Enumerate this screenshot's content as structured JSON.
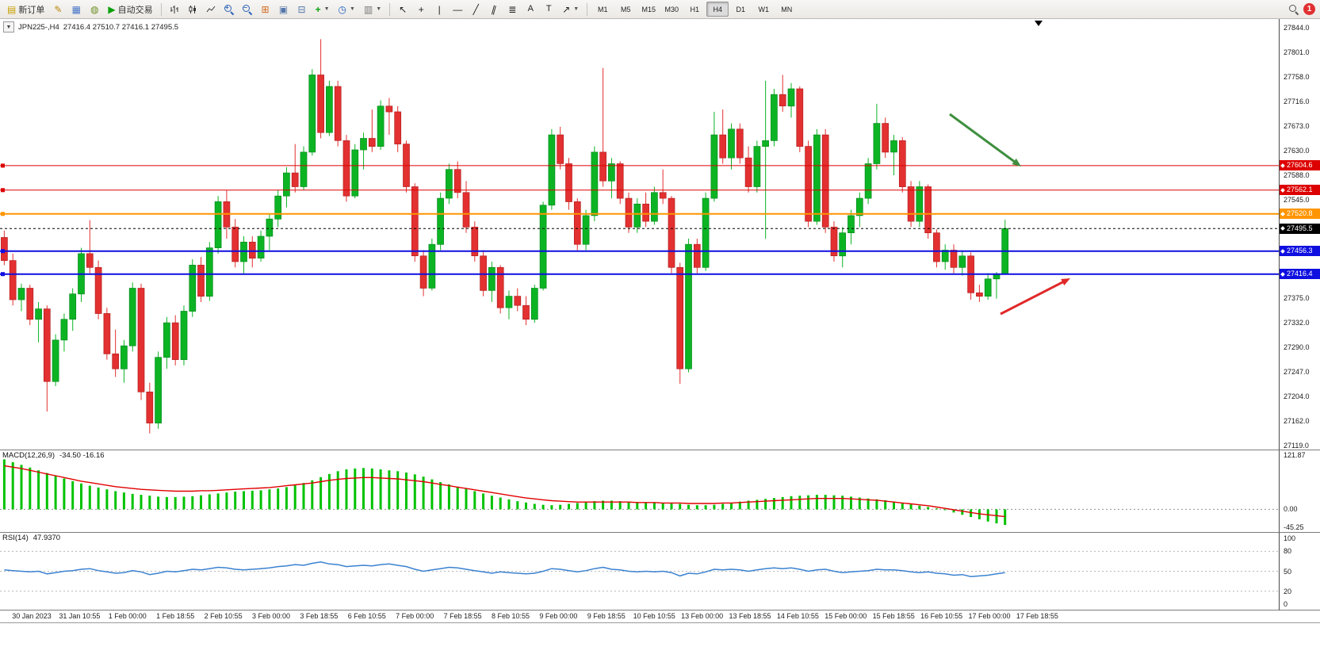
{
  "toolbar": {
    "new_order": "新订单",
    "autotrade": "自动交易",
    "timeframes": [
      "M1",
      "M5",
      "M15",
      "M30",
      "H1",
      "H4",
      "D1",
      "W1",
      "MN"
    ],
    "active_timeframe": "H4",
    "notification_count": "1",
    "text_tool": "A",
    "label_tool": "T"
  },
  "chart": {
    "title": "JPN225-,H4",
    "ohlc_text": "27416.4 27510.7 27416.1 27495.5"
  },
  "macd": {
    "name": "MACD(12,26,9)",
    "values": "-34.50 -16.16",
    "scale": [
      "121.87",
      "0.00",
      "-45.25"
    ]
  },
  "rsi": {
    "name": "RSI(14)",
    "value": "47.9370",
    "scale": [
      "100",
      "80",
      "50",
      "20",
      "0"
    ]
  },
  "price_scale": {
    "labels": [
      "27844.0",
      "27801.0",
      "27758.0",
      "27716.0",
      "27673.0",
      "27630.0",
      "27588.0",
      "27545.0",
      "27375.0",
      "27332.0",
      "27290.0",
      "27247.0",
      "27204.0",
      "27162.0",
      "27119.0"
    ]
  },
  "price_boxes": [
    {
      "label": "27604.6",
      "color": "#dd0000"
    },
    {
      "label": "27562.1",
      "color": "#dd0000"
    },
    {
      "label": "27520.8",
      "color": "#ff9500"
    },
    {
      "label": "27495.5",
      "color": "#000000"
    },
    {
      "label": "27456.3",
      "color": "#0f0fe0"
    },
    {
      "label": "27416.4",
      "color": "#0f0fe0"
    }
  ],
  "time_axis": [
    "30 Jan 2023",
    "31 Jan 10:55",
    "1 Feb 00:00",
    "1 Feb 18:55",
    "2 Feb 10:55",
    "3 Feb 00:00",
    "3 Feb 18:55",
    "6 Feb 10:55",
    "7 Feb 00:00",
    "7 Feb 18:55",
    "8 Feb 10:55",
    "9 Feb 00:00",
    "9 Feb 18:55",
    "10 Feb 10:55",
    "13 Feb 00:00",
    "13 Feb 18:55",
    "14 Feb 10:55",
    "15 Feb 00:00",
    "15 Feb 18:55",
    "16 Feb 10:55",
    "17 Feb 00:00",
    "17 Feb 18:55"
  ],
  "chart_data": {
    "type": "candlestick",
    "symbol": "JPN225-",
    "timeframe": "H4",
    "current_bar": {
      "open": 27416.4,
      "high": 27510.7,
      "low": 27416.1,
      "close": 27495.5
    },
    "y_range": [
      27112,
      27859
    ],
    "right_gap_slots": 31.5,
    "shift_marker_x": 1310,
    "colors": {
      "bull": "#0cb424",
      "bull_border": "#068a1c",
      "bear": "#e33030",
      "bear_border": "#b51f1f"
    },
    "candles": [
      [
        27480,
        27492,
        27432,
        27440
      ],
      [
        27440,
        27452,
        27362,
        27372
      ],
      [
        27372,
        27400,
        27352,
        27392
      ],
      [
        27392,
        27398,
        27328,
        27338
      ],
      [
        27338,
        27368,
        27298,
        27356
      ],
      [
        27356,
        27362,
        27178,
        27230
      ],
      [
        27230,
        27312,
        27222,
        27302
      ],
      [
        27302,
        27348,
        27282,
        27338
      ],
      [
        27338,
        27392,
        27318,
        27382
      ],
      [
        27382,
        27462,
        27368,
        27452
      ],
      [
        27452,
        27510,
        27418,
        27428
      ],
      [
        27428,
        27440,
        27338,
        27348
      ],
      [
        27348,
        27358,
        27268,
        27278
      ],
      [
        27278,
        27320,
        27238,
        27252
      ],
      [
        27252,
        27302,
        27228,
        27292
      ],
      [
        27292,
        27402,
        27282,
        27392
      ],
      [
        27392,
        27400,
        27198,
        27212
      ],
      [
        27212,
        27228,
        27140,
        27158
      ],
      [
        27158,
        27282,
        27148,
        27272
      ],
      [
        27272,
        27342,
        27252,
        27332
      ],
      [
        27332,
        27345,
        27258,
        27268
      ],
      [
        27268,
        27362,
        27258,
        27352
      ],
      [
        27352,
        27442,
        27342,
        27432
      ],
      [
        27432,
        27446,
        27368,
        27378
      ],
      [
        27378,
        27472,
        27370,
        27462
      ],
      [
        27462,
        27552,
        27452,
        27542
      ],
      [
        27542,
        27562,
        27478,
        27498
      ],
      [
        27498,
        27512,
        27428,
        27438
      ],
      [
        27438,
        27482,
        27418,
        27472
      ],
      [
        27472,
        27482,
        27428,
        27444
      ],
      [
        27444,
        27492,
        27438,
        27482
      ],
      [
        27482,
        27522,
        27458,
        27512
      ],
      [
        27512,
        27562,
        27498,
        27552
      ],
      [
        27552,
        27602,
        27532,
        27592
      ],
      [
        27592,
        27642,
        27558,
        27568
      ],
      [
        27568,
        27638,
        27562,
        27628
      ],
      [
        27628,
        27772,
        27622,
        27762
      ],
      [
        27762,
        27824,
        27652,
        27662
      ],
      [
        27662,
        27752,
        27656,
        27742
      ],
      [
        27742,
        27752,
        27638,
        27648
      ],
      [
        27648,
        27658,
        27542,
        27552
      ],
      [
        27552,
        27642,
        27548,
        27632
      ],
      [
        27632,
        27662,
        27598,
        27652
      ],
      [
        27652,
        27702,
        27628,
        27638
      ],
      [
        27638,
        27718,
        27632,
        27708
      ],
      [
        27708,
        27722,
        27658,
        27698
      ],
      [
        27698,
        27708,
        27628,
        27642
      ],
      [
        27642,
        27648,
        27558,
        27568
      ],
      [
        27568,
        27574,
        27438,
        27448
      ],
      [
        27448,
        27458,
        27378,
        27392
      ],
      [
        27392,
        27478,
        27388,
        27468
      ],
      [
        27468,
        27558,
        27458,
        27548
      ],
      [
        27548,
        27608,
        27538,
        27598
      ],
      [
        27598,
        27612,
        27548,
        27558
      ],
      [
        27558,
        27578,
        27488,
        27498
      ],
      [
        27498,
        27508,
        27438,
        27448
      ],
      [
        27448,
        27458,
        27378,
        27388
      ],
      [
        27388,
        27438,
        27368,
        27428
      ],
      [
        27428,
        27432,
        27348,
        27358
      ],
      [
        27358,
        27388,
        27338,
        27378
      ],
      [
        27378,
        27392,
        27352,
        27362
      ],
      [
        27362,
        27378,
        27328,
        27338
      ],
      [
        27338,
        27398,
        27332,
        27392
      ],
      [
        27392,
        27542,
        27388,
        27536
      ],
      [
        27536,
        27668,
        27528,
        27658
      ],
      [
        27658,
        27672,
        27598,
        27608
      ],
      [
        27608,
        27618,
        27528,
        27542
      ],
      [
        27542,
        27548,
        27458,
        27468
      ],
      [
        27468,
        27528,
        27458,
        27518
      ],
      [
        27518,
        27638,
        27508,
        27628
      ],
      [
        27628,
        27774,
        27568,
        27578
      ],
      [
        27578,
        27618,
        27548,
        27608
      ],
      [
        27608,
        27612,
        27538,
        27548
      ],
      [
        27548,
        27558,
        27488,
        27498
      ],
      [
        27498,
        27548,
        27488,
        27538
      ],
      [
        27538,
        27558,
        27498,
        27508
      ],
      [
        27508,
        27568,
        27502,
        27558
      ],
      [
        27558,
        27598,
        27538,
        27548
      ],
      [
        27548,
        27552,
        27418,
        27428
      ],
      [
        27428,
        27436,
        27226,
        27252
      ],
      [
        27252,
        27478,
        27246,
        27468
      ],
      [
        27468,
        27478,
        27418,
        27428
      ],
      [
        27428,
        27558,
        27422,
        27548
      ],
      [
        27548,
        27698,
        27542,
        27658
      ],
      [
        27658,
        27702,
        27608,
        27618
      ],
      [
        27618,
        27678,
        27598,
        27668
      ],
      [
        27668,
        27678,
        27608,
        27618
      ],
      [
        27618,
        27638,
        27558,
        27568
      ],
      [
        27568,
        27648,
        27558,
        27638
      ],
      [
        27638,
        27752,
        27478,
        27648
      ],
      [
        27648,
        27738,
        27638,
        27728
      ],
      [
        27728,
        27762,
        27698,
        27708
      ],
      [
        27708,
        27748,
        27688,
        27738
      ],
      [
        27738,
        27742,
        27628,
        27638
      ],
      [
        27638,
        27648,
        27498,
        27508
      ],
      [
        27508,
        27668,
        27502,
        27658
      ],
      [
        27658,
        27668,
        27488,
        27498
      ],
      [
        27498,
        27508,
        27438,
        27448
      ],
      [
        27448,
        27498,
        27428,
        27488
      ],
      [
        27488,
        27528,
        27468,
        27518
      ],
      [
        27518,
        27558,
        27498,
        27548
      ],
      [
        27548,
        27618,
        27538,
        27608
      ],
      [
        27608,
        27712,
        27598,
        27678
      ],
      [
        27678,
        27688,
        27618,
        27628
      ],
      [
        27628,
        27658,
        27588,
        27648
      ],
      [
        27648,
        27654,
        27558,
        27568
      ],
      [
        27568,
        27578,
        27498,
        27508
      ],
      [
        27508,
        27578,
        27498,
        27568
      ],
      [
        27568,
        27572,
        27478,
        27488
      ],
      [
        27488,
        27494,
        27428,
        27438
      ],
      [
        27438,
        27468,
        27424,
        27458
      ],
      [
        27458,
        27468,
        27418,
        27428
      ],
      [
        27428,
        27458,
        27414,
        27448
      ],
      [
        27448,
        27454,
        27372,
        27384
      ],
      [
        27384,
        27398,
        27368,
        27378
      ],
      [
        27378,
        27418,
        27372,
        27408
      ],
      [
        27408,
        27420,
        27374,
        27416
      ],
      [
        27416.4,
        27510.7,
        27416.1,
        27495.5
      ]
    ],
    "levels": [
      {
        "price": 27604.6,
        "color": "#dd0000",
        "width": 1,
        "style": "solid"
      },
      {
        "price": 27562.1,
        "color": "#dd0000",
        "width": 1,
        "style": "solid"
      },
      {
        "price": 27520.8,
        "color": "#ff9500",
        "width": 2,
        "style": "solid"
      },
      {
        "price": 27495.5,
        "color": "#000000",
        "width": 1,
        "style": "dash"
      },
      {
        "price": 27456.3,
        "color": "#0f0fe0",
        "width": 2,
        "style": "solid"
      },
      {
        "price": 27416.4,
        "color": "#0f0fe0",
        "width": 2,
        "style": "solid"
      }
    ],
    "annotations": [
      {
        "type": "arrow",
        "color": "#3f8f3f",
        "from": [
          1198,
          120
        ],
        "to": [
          1288,
          186
        ]
      },
      {
        "type": "arrow",
        "color": "#e02828",
        "from": [
          1262,
          372
        ],
        "to": [
          1350,
          327
        ]
      }
    ],
    "indicators": [
      {
        "name": "MACD",
        "params": "12,26,9",
        "last_values": [
          -34.5,
          -16.16
        ],
        "histogram_color": "#00c200",
        "signal_color": "#e00000",
        "view_max": 130,
        "view_min": -50,
        "histogram": [
          110,
          104,
          98,
          92,
          86,
          80,
          74,
          68,
          62,
          57,
          52,
          48,
          44,
          40,
          37,
          34,
          32,
          30,
          28,
          27,
          27,
          28,
          29,
          31,
          33,
          35,
          37,
          39,
          40,
          41,
          42,
          44,
          46,
          49,
          53,
          58,
          64,
          71,
          78,
          84,
          88,
          90,
          91,
          90,
          88,
          86,
          84,
          81,
          77,
          72,
          66,
          60,
          55,
          50,
          45,
          40,
          35,
          30,
          26,
          22,
          18,
          15,
          12,
          10,
          9,
          10,
          12,
          14,
          16,
          18,
          19,
          19,
          18,
          17,
          16,
          15,
          14,
          14,
          13,
          12,
          10,
          9,
          9,
          10,
          12,
          14,
          17,
          19,
          21,
          23,
          25,
          27,
          29,
          30,
          31,
          32,
          32,
          31,
          30,
          28,
          26,
          24,
          22,
          20,
          17,
          14,
          11,
          8,
          5,
          2,
          -2,
          -7,
          -12,
          -17,
          -22,
          -27,
          -31,
          -34.5
        ],
        "signal": [
          96,
          93,
          90,
          86,
          82,
          78,
          74,
          70,
          66,
          62,
          59,
          56,
          53,
          50,
          48,
          46,
          44,
          43,
          42,
          41,
          40,
          40,
          40,
          41,
          41,
          42,
          43,
          44,
          45,
          46,
          47,
          48,
          50,
          52,
          54,
          56,
          58,
          61,
          64,
          66,
          68,
          69,
          70,
          70,
          69,
          68,
          67,
          65,
          63,
          61,
          58,
          55,
          52,
          49,
          46,
          43,
          40,
          37,
          34,
          31,
          28,
          25,
          23,
          21,
          19,
          18,
          17,
          16,
          16,
          16,
          16,
          16,
          16,
          16,
          15,
          15,
          15,
          14,
          14,
          14,
          13,
          13,
          13,
          13,
          14,
          14,
          15,
          16,
          17,
          18,
          19,
          20,
          21,
          22,
          23,
          24,
          24,
          24,
          24,
          23,
          22,
          21,
          20,
          18,
          16,
          14,
          12,
          10,
          8,
          5,
          2,
          -1,
          -4,
          -7,
          -10,
          -12,
          -14,
          -16.16
        ]
      },
      {
        "name": "RSI",
        "params": "14",
        "last_value": 47.937,
        "line_color": "#3b82d0",
        "levels": [
          80,
          50,
          20
        ],
        "view_max": 108,
        "view_min": -8,
        "values": [
          52,
          51,
          50,
          49,
          50,
          46,
          48,
          50,
          51,
          53,
          54,
          51,
          49,
          47,
          48,
          51,
          49,
          45,
          47,
          50,
          49,
          51,
          53,
          52,
          54,
          56,
          55,
          53,
          52,
          53,
          54,
          55,
          57,
          58,
          60,
          59,
          62,
          64,
          61,
          60,
          57,
          58,
          59,
          58,
          60,
          61,
          59,
          57,
          53,
          50,
          52,
          54,
          56,
          55,
          53,
          51,
          49,
          47,
          49,
          48,
          47,
          46,
          47,
          50,
          54,
          53,
          51,
          49,
          51,
          54,
          56,
          53,
          52,
          50,
          49,
          50,
          49,
          50,
          48,
          43,
          47,
          46,
          49,
          53,
          52,
          53,
          52,
          50,
          52,
          54,
          55,
          54,
          55,
          53,
          50,
          52,
          53,
          50,
          48,
          49,
          50,
          51,
          53,
          52,
          52,
          51,
          49,
          48,
          49,
          47,
          46,
          44,
          45,
          42,
          43,
          44,
          46,
          47.94
        ]
      }
    ]
  }
}
